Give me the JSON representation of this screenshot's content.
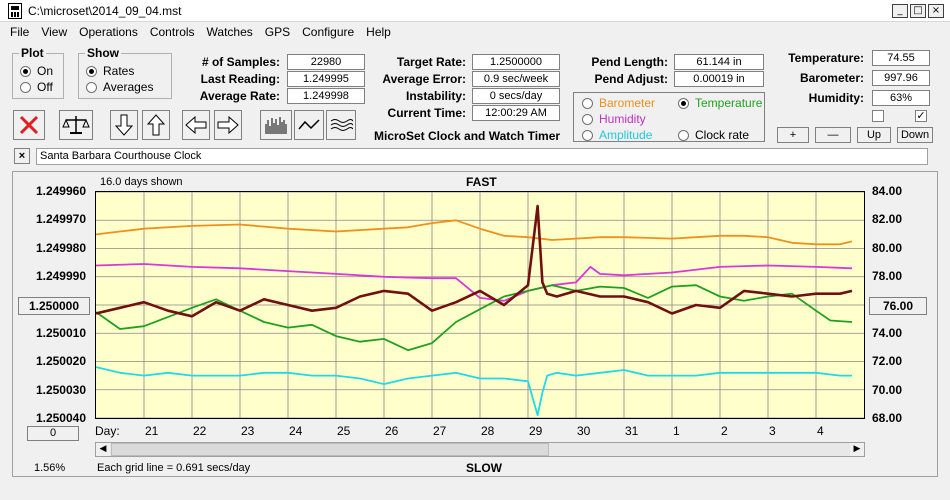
{
  "window": {
    "title": "C:\\microset\\2014_09_04.mst"
  },
  "menu": [
    "File",
    "View",
    "Operations",
    "Controls",
    "Watches",
    "GPS",
    "Configure",
    "Help"
  ],
  "plot_group": {
    "title": "Plot",
    "on_label": "On",
    "off_label": "Off",
    "selected": "On"
  },
  "show_group": {
    "title": "Show",
    "rates_label": "Rates",
    "averages_label": "Averages",
    "selected": "Rates"
  },
  "stats": {
    "samples_label": "# of Samples:",
    "samples": "22980",
    "last_reading_label": "Last Reading:",
    "last_reading": "1.249995",
    "average_rate_label": "Average Rate:",
    "average_rate": "1.249998",
    "target_rate_label": "Target Rate:",
    "target_rate": "1.2500000",
    "average_error_label": "Average Error:",
    "average_error": "0.9 sec/week",
    "instability_label": "Instability:",
    "instability": "0 secs/day",
    "current_time_label": "Current Time:",
    "current_time": "12:00:29 AM",
    "pend_length_label": "Pend Length:",
    "pend_length": "61.144 in",
    "pend_adjust_label": "Pend Adjust:",
    "pend_adjust": "0.00019 in",
    "temperature_label": "Temperature:",
    "temperature": "74.55",
    "barometer_label": "Barometer:",
    "barometer": "997.96",
    "humidity_label": "Humidity:",
    "humidity": "63%"
  },
  "app_caption": "MicroSet Clock and Watch Timer",
  "overlay_options": {
    "barometer": "Barometer",
    "temperature": "Temperature",
    "humidity": "Humidity",
    "amplitude": "Amplitude",
    "clock_rate": "Clock rate",
    "selected": "Temperature"
  },
  "small_buttons": {
    "plus": "+",
    "minus": "—",
    "up": "Up",
    "down": "Down"
  },
  "checkboxes": {
    "left_checked": false,
    "right_checked": true,
    "right_mark": "✓"
  },
  "clock": {
    "close": "×",
    "name": "Santa Barbara Courthouse Clock"
  },
  "graph": {
    "days_shown": "16.0 days shown",
    "fast_label": "FAST",
    "slow_label": "SLOW",
    "grid_note": "Each grid line = 0.691 secs/day",
    "percent": "1.56%",
    "center_left": "1.250000",
    "center_right": "76.00",
    "bottom_left_button": "0",
    "day_prefix": "Day:"
  },
  "chart_data": {
    "type": "line",
    "x_unit": "day",
    "x_tick_labels": [
      "21",
      "22",
      "23",
      "24",
      "25",
      "26",
      "27",
      "28",
      "29",
      "30",
      "31",
      "1",
      "2",
      "3",
      "4"
    ],
    "y_left_ticks": [
      "1.249960",
      "1.249970",
      "1.249980",
      "1.249990",
      "1.250000",
      "1.250010",
      "1.250020",
      "1.250030",
      "1.250040"
    ],
    "y_right_ticks": [
      "84.00",
      "82.00",
      "80.00",
      "78.00",
      "76.00",
      "74.00",
      "72.00",
      "70.00",
      "68.00"
    ],
    "y_left_range": [
      1.24996,
      1.25004
    ],
    "y_right_range": [
      68,
      84
    ],
    "grid": true,
    "series": [
      {
        "color": "#f0901c",
        "axis": "right",
        "x": [
          20.0,
          20.5,
          21.0,
          22.0,
          23.0,
          24.0,
          25.0,
          26.0,
          26.5,
          27.0,
          27.5,
          28.0,
          28.5,
          29.0,
          29.5,
          30.0,
          30.5,
          31.0,
          32.0,
          32.5,
          33.0,
          33.5,
          34.0,
          34.5,
          35.0,
          35.5,
          35.75
        ],
        "y": [
          81.0,
          81.2,
          81.4,
          81.6,
          81.7,
          81.4,
          81.2,
          81.4,
          81.5,
          81.8,
          82.0,
          81.4,
          80.9,
          80.8,
          80.6,
          80.7,
          80.8,
          80.8,
          80.7,
          80.8,
          80.9,
          80.9,
          80.8,
          80.4,
          80.3,
          80.3,
          80.5
        ]
      },
      {
        "color": "#d838d8",
        "axis": "right",
        "x": [
          20.0,
          21.0,
          22.0,
          23.0,
          24.0,
          25.0,
          26.0,
          27.0,
          27.5,
          28.0,
          28.5,
          29.0,
          29.5,
          30.0,
          30.3,
          30.5,
          31.0,
          32.0,
          33.0,
          34.0,
          35.0,
          35.75
        ],
        "y": [
          78.8,
          78.9,
          78.7,
          78.6,
          78.4,
          78.2,
          78.0,
          77.9,
          77.9,
          76.5,
          76.3,
          77.0,
          77.4,
          77.6,
          78.7,
          78.2,
          78.1,
          78.3,
          78.7,
          78.8,
          78.7,
          78.6
        ]
      },
      {
        "color": "#20a020",
        "axis": "right",
        "x": [
          20.0,
          20.5,
          21.0,
          22.0,
          22.5,
          23.0,
          23.5,
          24.0,
          24.5,
          25.0,
          25.5,
          26.0,
          26.5,
          27.0,
          27.5,
          28.0,
          28.5,
          29.0,
          29.5,
          30.0,
          30.5,
          31.0,
          31.5,
          32.0,
          32.5,
          33.0,
          33.5,
          34.0,
          34.5,
          35.0,
          35.3,
          35.75
        ],
        "y": [
          75.5,
          74.3,
          74.5,
          75.8,
          76.4,
          75.6,
          74.8,
          74.4,
          74.6,
          73.8,
          73.4,
          73.6,
          72.8,
          73.3,
          74.8,
          75.7,
          76.6,
          77.0,
          77.4,
          77.0,
          77.3,
          77.2,
          76.5,
          77.3,
          77.4,
          76.6,
          76.3,
          76.6,
          76.8,
          75.6,
          74.9,
          74.8
        ]
      },
      {
        "color": "#701010",
        "axis": "left",
        "x": [
          20.0,
          20.5,
          21.0,
          21.5,
          22.0,
          22.5,
          23.0,
          23.5,
          24.0,
          24.5,
          25.0,
          25.5,
          26.0,
          26.5,
          27.0,
          27.5,
          28.0,
          28.5,
          29.0,
          29.2,
          29.3,
          29.4,
          29.6,
          30.0,
          30.5,
          31.0,
          31.5,
          32.0,
          32.5,
          33.0,
          33.5,
          34.0,
          34.5,
          35.0,
          35.5,
          35.75
        ],
        "y": [
          1.250003,
          1.250001,
          1.249999,
          1.250002,
          1.250004,
          1.249999,
          1.250002,
          1.249998,
          1.25,
          1.250002,
          1.250001,
          1.249997,
          1.249995,
          1.249996,
          1.250002,
          1.249999,
          1.249995,
          1.25,
          1.249993,
          1.249965,
          1.249992,
          1.249996,
          1.249997,
          1.249995,
          1.249997,
          1.249997,
          1.249999,
          1.250003,
          1.25,
          1.250001,
          1.249995,
          1.249996,
          1.249997,
          1.249996,
          1.249996,
          1.249995
        ]
      },
      {
        "color": "#20d8e8",
        "axis": "left",
        "x": [
          20.0,
          20.5,
          21.0,
          21.5,
          22.0,
          22.5,
          23.0,
          23.5,
          24.0,
          24.5,
          25.0,
          25.5,
          26.0,
          26.5,
          27.0,
          27.5,
          28.0,
          28.5,
          29.0,
          29.2,
          29.3,
          29.4,
          29.6,
          30.0,
          30.5,
          31.0,
          31.5,
          32.0,
          32.5,
          33.0,
          33.5,
          34.0,
          34.5,
          35.0,
          35.5,
          35.75
        ],
        "y": [
          1.250022,
          1.250024,
          1.250025,
          1.250024,
          1.250025,
          1.250025,
          1.250025,
          1.250024,
          1.250024,
          1.250025,
          1.250025,
          1.250026,
          1.250028,
          1.250026,
          1.250025,
          1.250024,
          1.250026,
          1.250026,
          1.250027,
          1.250039,
          1.250031,
          1.250025,
          1.250024,
          1.250025,
          1.250024,
          1.250023,
          1.250025,
          1.250025,
          1.250025,
          1.250024,
          1.250024,
          1.250024,
          1.250024,
          1.250024,
          1.250025,
          1.250025
        ]
      }
    ]
  }
}
